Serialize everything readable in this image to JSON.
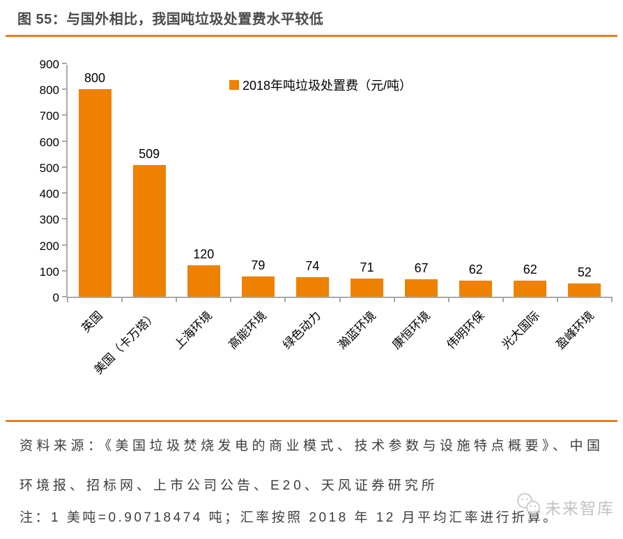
{
  "header": {
    "title": "图 55：与国外相比，我国吨垃圾处置费水平较低"
  },
  "chart_data": {
    "type": "bar",
    "title": "图 55：与国外相比，我国吨垃圾处置费水平较低",
    "legend": "2018年吨垃圾处置费（元/吨）",
    "legend_position": "top-center",
    "categories": [
      "英国",
      "美国（卡万塔）",
      "上海环境",
      "高能环境",
      "绿色动力",
      "瀚蓝环境",
      "康恒环境",
      "伟明环保",
      "光大国际",
      "盈峰环境"
    ],
    "values": [
      800,
      509,
      120,
      79,
      74,
      71,
      67,
      62,
      62,
      52
    ],
    "xlabel": "",
    "ylabel": "元/吨",
    "ylim": [
      0,
      900
    ],
    "ytick_step": 100,
    "grid": false,
    "bar_color": "#ee8100",
    "axis_color": "#a9a9a9"
  },
  "footer": {
    "source": "资料来源：《美国垃圾焚烧发电的商业模式、技术参数与设施特点概要》、中国环境报、招标网、上市公司公告、E20、天风证券研究所",
    "note": "注：1 美吨=0.90718474 吨；汇率按照 2018 年 12 月平均汇率进行折算。",
    "watermark": "未来智库"
  },
  "colors": {
    "accent_rule": "#e87e23",
    "bar": "#ee8100",
    "title_text": "#4a4a4a"
  }
}
